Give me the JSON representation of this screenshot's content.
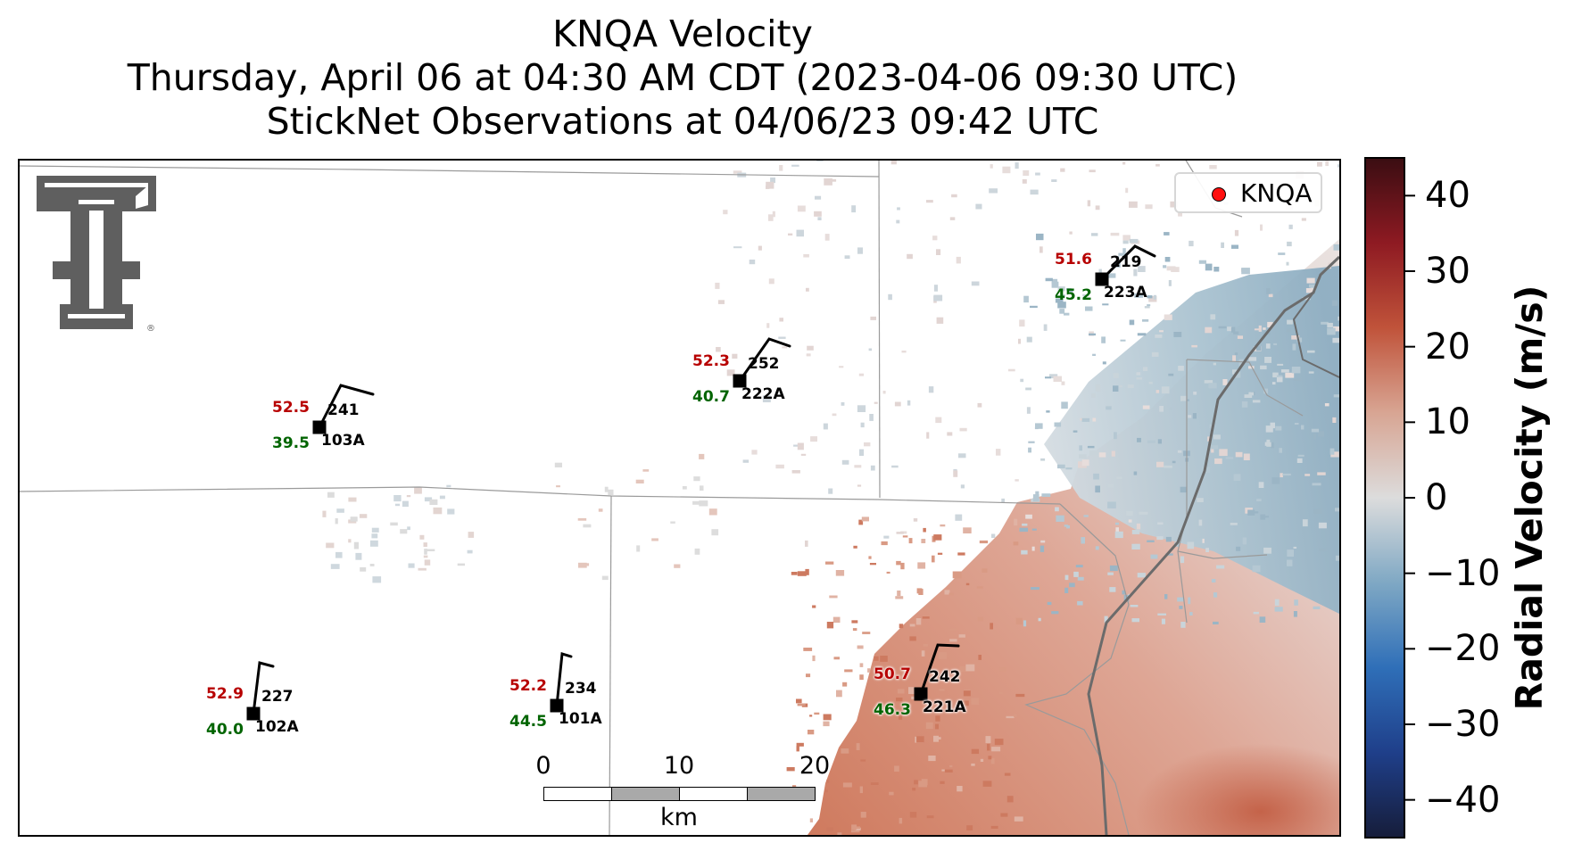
{
  "title": {
    "line1": "KNQA Velocity",
    "line2": "Thursday, April 06 at 04:30 AM CDT (2023-04-06 09:30 UTC)",
    "line3": "StickNet Observations at 04/06/23 09:42 UTC"
  },
  "legend": {
    "label": "KNQA",
    "marker_color": "#ff1010"
  },
  "logo": {
    "icon": "texas-tech-double-t-logo",
    "mark": "®"
  },
  "stations": [
    {
      "id": "103A",
      "gust": "52.5",
      "speed": "39.5",
      "direction": "241"
    },
    {
      "id": "222A",
      "gust": "52.3",
      "speed": "40.7",
      "direction": "252"
    },
    {
      "id": "223A",
      "gust": "51.6",
      "speed": "45.2",
      "direction": "219"
    },
    {
      "id": "102A",
      "gust": "52.9",
      "speed": "40.0",
      "direction": "227"
    },
    {
      "id": "101A",
      "gust": "52.2",
      "speed": "44.5",
      "direction": "234"
    },
    {
      "id": "221A",
      "gust": "50.7",
      "speed": "46.3",
      "direction": "242"
    }
  ],
  "scalebar": {
    "ticks": [
      "0",
      "10",
      "20"
    ],
    "unit": "km"
  },
  "colorbar": {
    "title": "Radial Velocity (m/s)",
    "ticks": [
      "40",
      "30",
      "20",
      "10",
      "0",
      "−10",
      "−20",
      "−30",
      "−40"
    ],
    "range": [
      -45,
      45
    ],
    "colors": [
      "#161d3a",
      "#1f3f8a",
      "#2f6fb8",
      "#7fa8c4",
      "#dcdcdc",
      "#d8a593",
      "#c0533a",
      "#8e1a22",
      "#3a0d12"
    ]
  },
  "colors": {
    "gust": "#b70000",
    "speed": "#006400",
    "outflow": "#d17d62",
    "inflow": "#8fb0c3"
  }
}
